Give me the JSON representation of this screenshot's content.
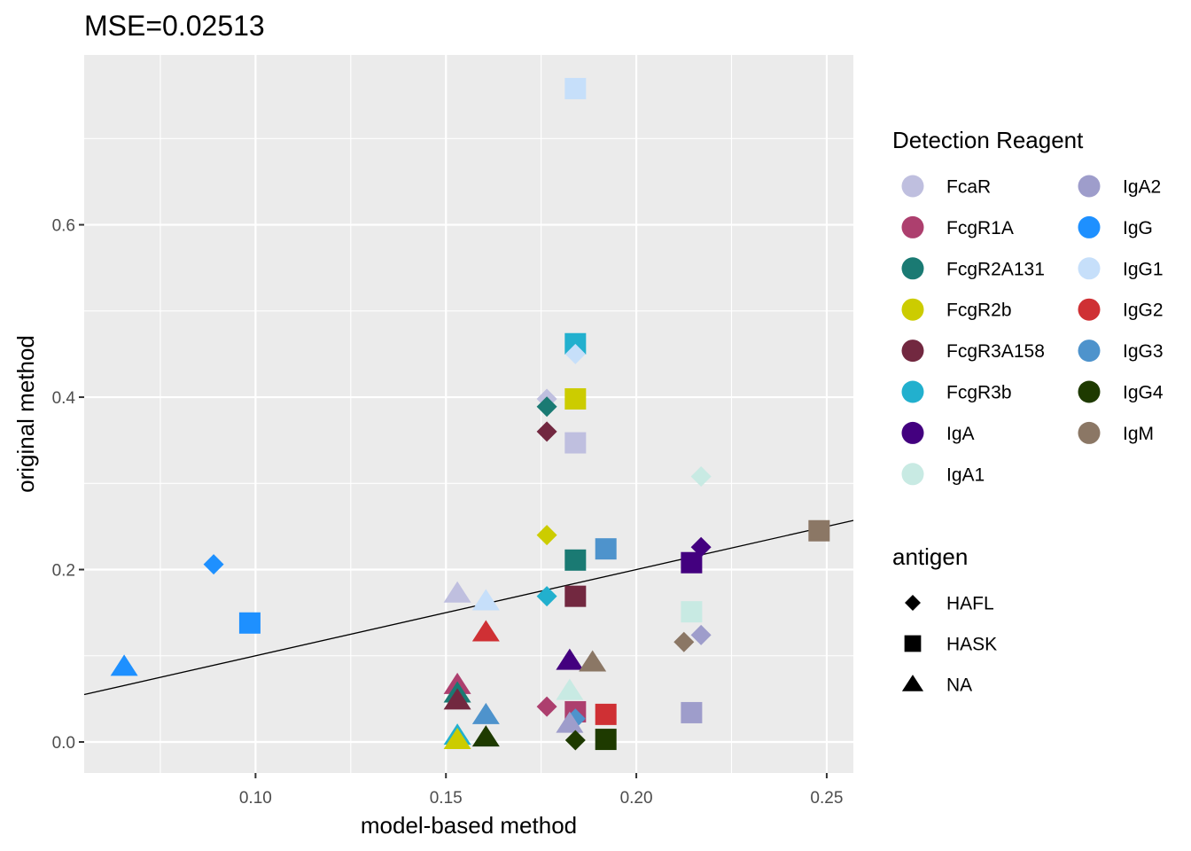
{
  "chart_data": {
    "type": "scatter",
    "title": "MSE=0.02513",
    "xlabel": "model-based method",
    "ylabel": "original method",
    "xlim": [
      0.055,
      0.257
    ],
    "ylim": [
      -0.036,
      0.797
    ],
    "xticks": [
      0.1,
      0.15,
      0.2,
      0.25
    ],
    "xtick_labels": [
      "0.10",
      "0.15",
      "0.20",
      "0.25"
    ],
    "yticks": [
      0.0,
      0.2,
      0.4,
      0.6
    ],
    "ytick_labels": [
      "0.0",
      "0.2",
      "0.4",
      "0.6"
    ],
    "grid": true,
    "background": "#ebebeb",
    "reference_line": {
      "x": [
        0.055,
        0.257
      ],
      "y": [
        0.055,
        0.257
      ]
    },
    "legend_position": "right",
    "color_legend": {
      "title": "Detection Reagent",
      "entries": [
        {
          "label": "FcaR",
          "color": "#BFBFDF"
        },
        {
          "label": "FcgR1A",
          "color": "#AD3F6E"
        },
        {
          "label": "FcgR2A131",
          "color": "#1A7A73"
        },
        {
          "label": "FcgR2b",
          "color": "#CCCC00"
        },
        {
          "label": "FcgR3A158",
          "color": "#722840"
        },
        {
          "label": "FcgR3b",
          "color": "#22B0CE"
        },
        {
          "label": "IgA",
          "color": "#43007F"
        },
        {
          "label": "IgA1",
          "color": "#C8EAE3"
        },
        {
          "label": "IgA2",
          "color": "#9E9DCB"
        },
        {
          "label": "IgG",
          "color": "#1E90FF"
        },
        {
          "label": "IgG1",
          "color": "#C6DFFA"
        },
        {
          "label": "IgG2",
          "color": "#CF3034"
        },
        {
          "label": "IgG3",
          "color": "#4E93CC"
        },
        {
          "label": "IgG4",
          "color": "#1E3A00"
        },
        {
          "label": "IgM",
          "color": "#8B7765"
        }
      ]
    },
    "shape_legend": {
      "title": "antigen",
      "entries": [
        {
          "label": "HAFL",
          "shape": "diamond"
        },
        {
          "label": "HASK",
          "shape": "square"
        },
        {
          "label": "NA",
          "shape": "triangle"
        }
      ]
    },
    "points": [
      {
        "x": 0.184,
        "y": 0.758,
        "reagent": "IgG1",
        "antigen": "HASK"
      },
      {
        "x": 0.184,
        "y": 0.462,
        "reagent": "FcgR3b",
        "antigen": "HASK"
      },
      {
        "x": 0.184,
        "y": 0.45,
        "reagent": "IgG1",
        "antigen": "HAFL"
      },
      {
        "x": 0.1765,
        "y": 0.398,
        "reagent": "FcaR",
        "antigen": "HAFL"
      },
      {
        "x": 0.184,
        "y": 0.398,
        "reagent": "FcgR2b",
        "antigen": "HASK"
      },
      {
        "x": 0.1765,
        "y": 0.389,
        "reagent": "FcgR2A131",
        "antigen": "HAFL"
      },
      {
        "x": 0.1765,
        "y": 0.36,
        "reagent": "FcgR3A158",
        "antigen": "HAFL"
      },
      {
        "x": 0.184,
        "y": 0.347,
        "reagent": "FcaR",
        "antigen": "HASK"
      },
      {
        "x": 0.217,
        "y": 0.308,
        "reagent": "IgA1",
        "antigen": "HAFL"
      },
      {
        "x": 0.248,
        "y": 0.245,
        "reagent": "IgM",
        "antigen": "HASK"
      },
      {
        "x": 0.1765,
        "y": 0.24,
        "reagent": "FcgR2b",
        "antigen": "HAFL"
      },
      {
        "x": 0.217,
        "y": 0.226,
        "reagent": "IgA",
        "antigen": "HAFL"
      },
      {
        "x": 0.192,
        "y": 0.224,
        "reagent": "IgG3",
        "antigen": "HASK"
      },
      {
        "x": 0.184,
        "y": 0.211,
        "reagent": "FcgR2A131",
        "antigen": "HASK"
      },
      {
        "x": 0.2145,
        "y": 0.208,
        "reagent": "IgA",
        "antigen": "HASK"
      },
      {
        "x": 0.089,
        "y": 0.206,
        "reagent": "IgG",
        "antigen": "HAFL"
      },
      {
        "x": 0.153,
        "y": 0.172,
        "reagent": "FcaR",
        "antigen": "NA"
      },
      {
        "x": 0.1765,
        "y": 0.169,
        "reagent": "FcgR3b",
        "antigen": "HAFL"
      },
      {
        "x": 0.184,
        "y": 0.169,
        "reagent": "FcgR3A158",
        "antigen": "HASK"
      },
      {
        "x": 0.1605,
        "y": 0.163,
        "reagent": "IgG1",
        "antigen": "NA"
      },
      {
        "x": 0.2145,
        "y": 0.151,
        "reagent": "IgA1",
        "antigen": "HASK"
      },
      {
        "x": 0.0985,
        "y": 0.138,
        "reagent": "IgG",
        "antigen": "HASK"
      },
      {
        "x": 0.1605,
        "y": 0.127,
        "reagent": "IgG2",
        "antigen": "NA"
      },
      {
        "x": 0.217,
        "y": 0.124,
        "reagent": "IgA2",
        "antigen": "HAFL"
      },
      {
        "x": 0.2125,
        "y": 0.116,
        "reagent": "IgM",
        "antigen": "HAFL"
      },
      {
        "x": 0.1825,
        "y": 0.094,
        "reagent": "IgA",
        "antigen": "NA"
      },
      {
        "x": 0.1885,
        "y": 0.092,
        "reagent": "IgM",
        "antigen": "NA"
      },
      {
        "x": 0.0655,
        "y": 0.087,
        "reagent": "IgG",
        "antigen": "NA"
      },
      {
        "x": 0.153,
        "y": 0.066,
        "reagent": "FcgR1A",
        "antigen": "NA"
      },
      {
        "x": 0.1825,
        "y": 0.059,
        "reagent": "IgA1",
        "antigen": "NA"
      },
      {
        "x": 0.153,
        "y": 0.056,
        "reagent": "FcgR2A131",
        "antigen": "NA"
      },
      {
        "x": 0.153,
        "y": 0.048,
        "reagent": "FcgR3A158",
        "antigen": "NA"
      },
      {
        "x": 0.1765,
        "y": 0.041,
        "reagent": "FcgR1A",
        "antigen": "HAFL"
      },
      {
        "x": 0.184,
        "y": 0.035,
        "reagent": "FcgR1A",
        "antigen": "HASK"
      },
      {
        "x": 0.2145,
        "y": 0.034,
        "reagent": "IgA2",
        "antigen": "HASK"
      },
      {
        "x": 0.192,
        "y": 0.032,
        "reagent": "IgG2",
        "antigen": "HASK"
      },
      {
        "x": 0.1605,
        "y": 0.031,
        "reagent": "IgG3",
        "antigen": "NA"
      },
      {
        "x": 0.184,
        "y": 0.027,
        "reagent": "IgG3",
        "antigen": "HAFL"
      },
      {
        "x": 0.1825,
        "y": 0.021,
        "reagent": "IgA2",
        "antigen": "NA"
      },
      {
        "x": 0.153,
        "y": 0.007,
        "reagent": "FcgR3b",
        "antigen": "NA"
      },
      {
        "x": 0.153,
        "y": 0.002,
        "reagent": "FcgR2b",
        "antigen": "NA"
      },
      {
        "x": 0.1605,
        "y": 0.005,
        "reagent": "IgG4",
        "antigen": "NA"
      },
      {
        "x": 0.184,
        "y": 0.002,
        "reagent": "IgG4",
        "antigen": "HAFL"
      },
      {
        "x": 0.192,
        "y": 0.003,
        "reagent": "IgG4",
        "antigen": "HASK"
      }
    ]
  }
}
